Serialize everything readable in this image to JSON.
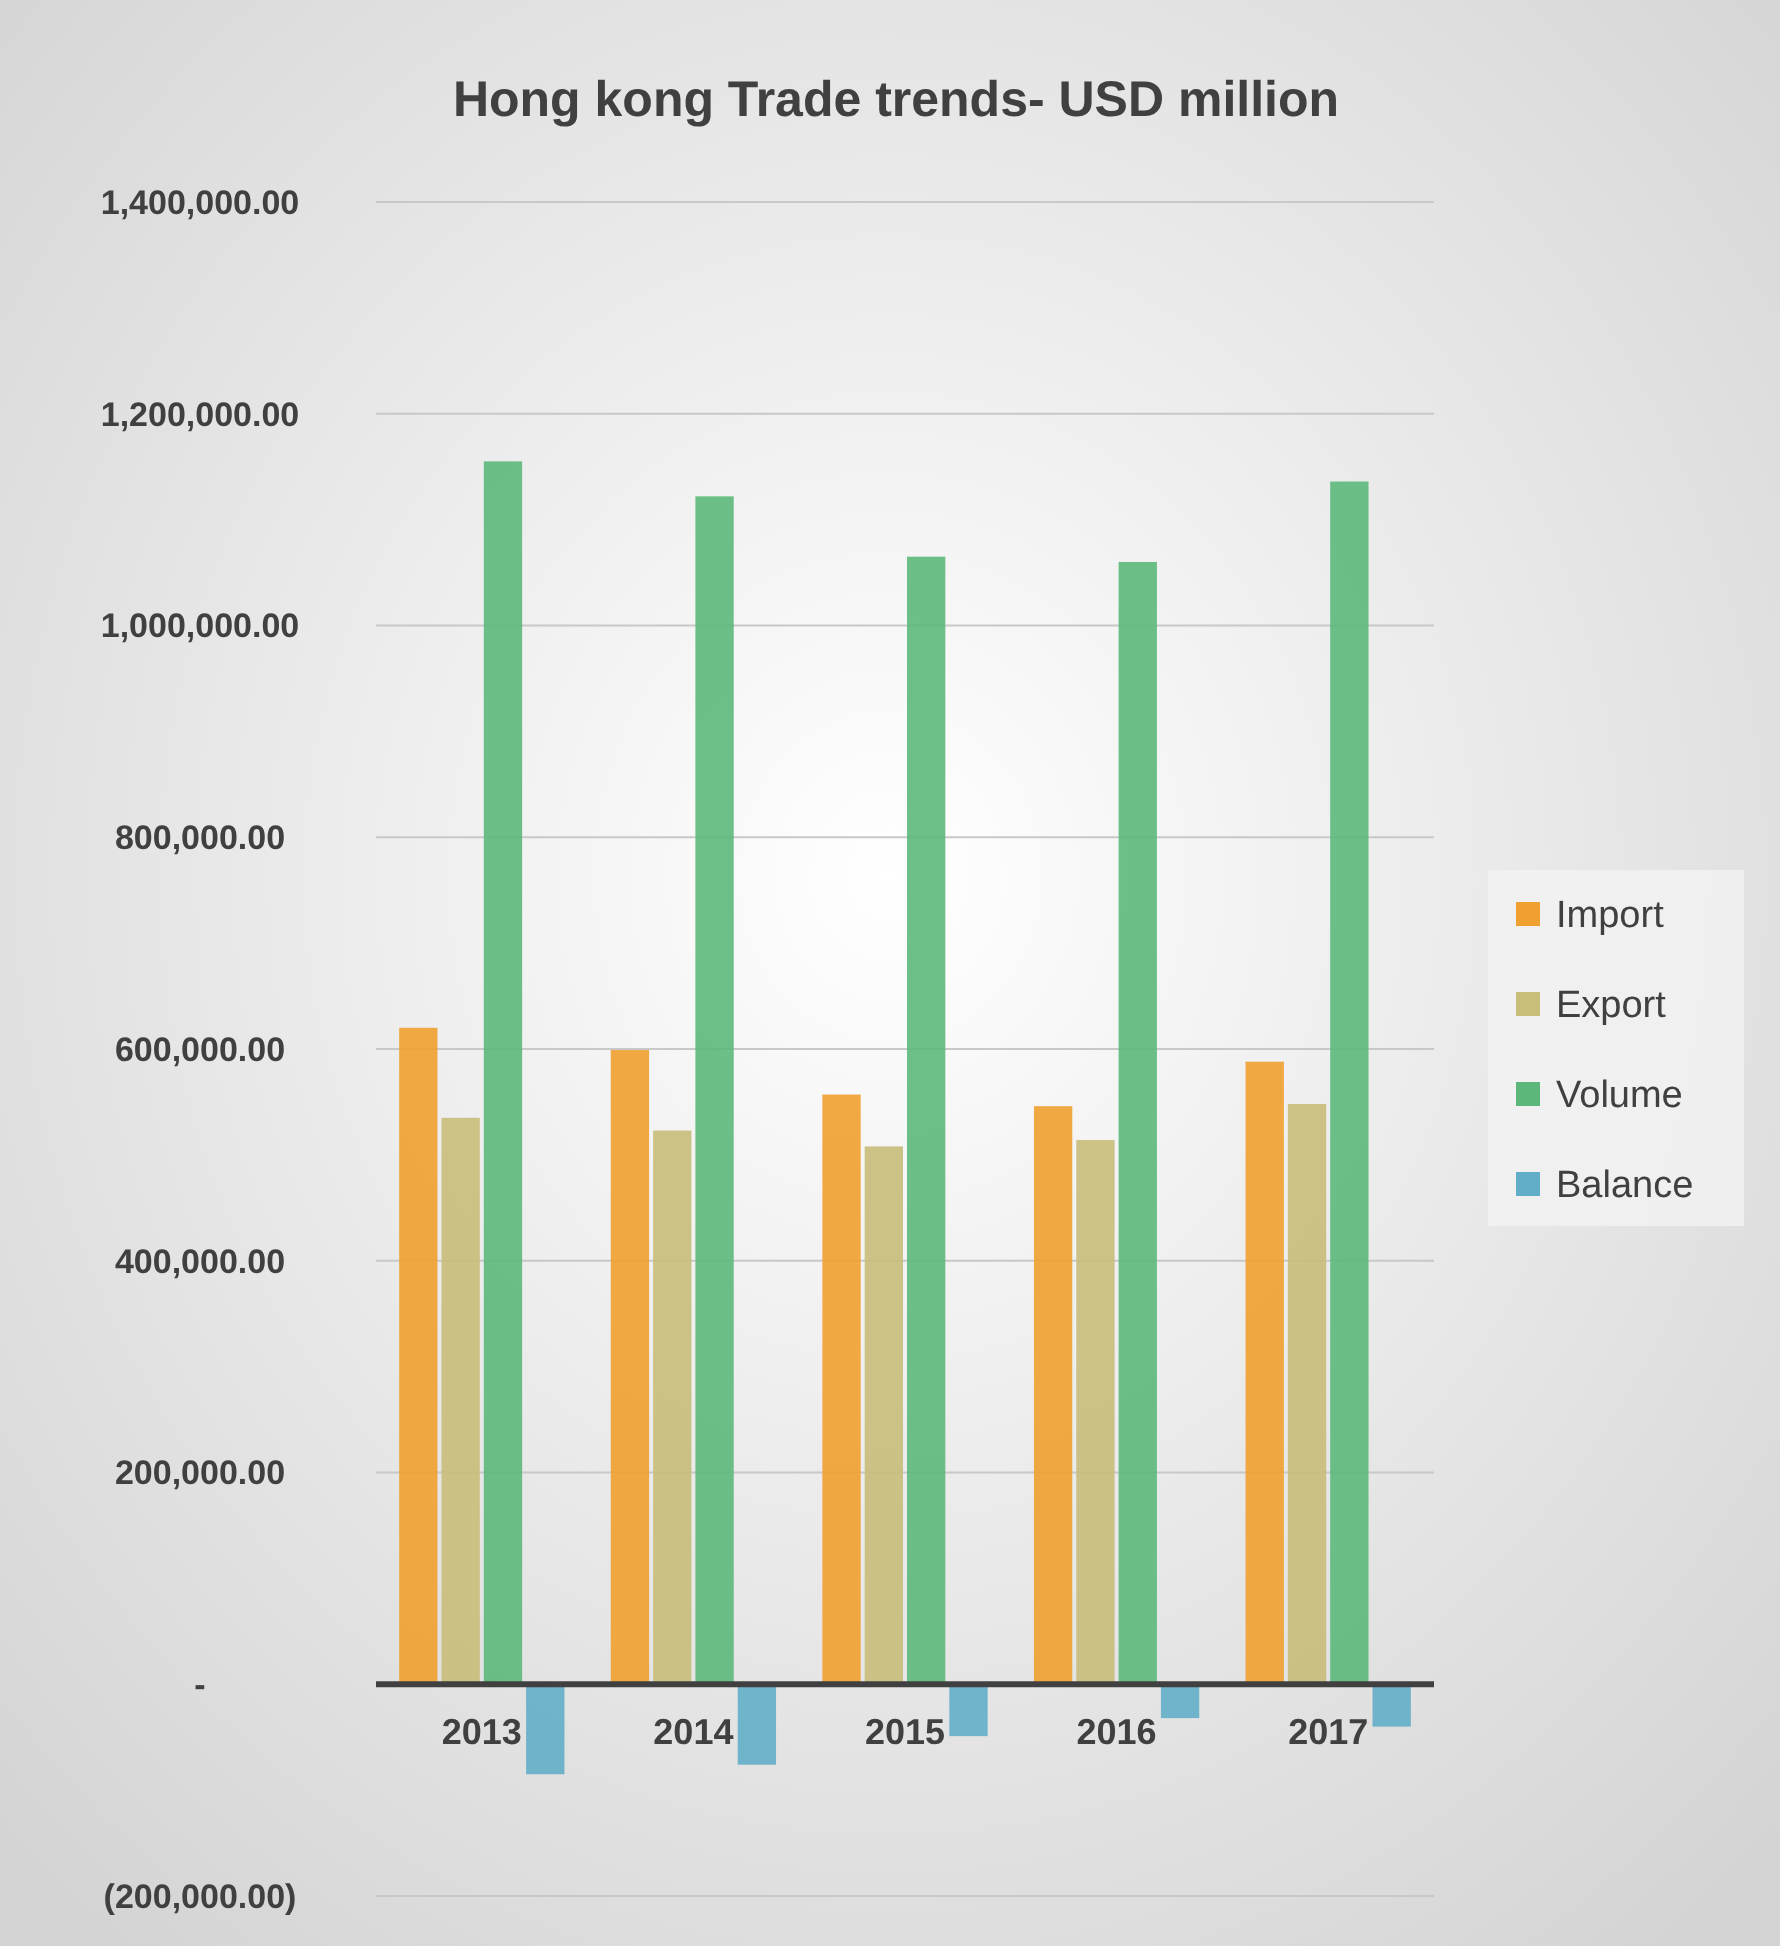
{
  "chart_data": {
    "type": "bar",
    "title": "Hong kong Trade trends- USD million",
    "categories": [
      "2013",
      "2014",
      "2015",
      "2016",
      "2017"
    ],
    "series": [
      {
        "name": "Import",
        "color": "#f0a030",
        "values": [
          620000,
          599000,
          557000,
          546000,
          588000
        ]
      },
      {
        "name": "Export",
        "color": "#c9bd7a",
        "values": [
          535000,
          523000,
          508000,
          514000,
          548000
        ]
      },
      {
        "name": "Volume",
        "color": "#5cb87a",
        "values": [
          1155000,
          1122000,
          1065000,
          1060000,
          1136000
        ]
      },
      {
        "name": "Balance",
        "color": "#62aec8",
        "values": [
          -85000,
          -76000,
          -49000,
          -32000,
          -40000
        ]
      }
    ],
    "ylim": [
      -200000,
      1400000
    ],
    "yticks": [
      {
        "value": -200000,
        "label": "(200,000.00)"
      },
      {
        "value": 0,
        "label": "-"
      },
      {
        "value": 200000,
        "label": "200,000.00"
      },
      {
        "value": 400000,
        "label": "400,000.00"
      },
      {
        "value": 600000,
        "label": "600,000.00"
      },
      {
        "value": 800000,
        "label": "800,000.00"
      },
      {
        "value": 1000000,
        "label": "1,000,000.00"
      },
      {
        "value": 1200000,
        "label": "1,200,000.00"
      },
      {
        "value": 1400000,
        "label": "1,400,000.00"
      }
    ],
    "grid": "y",
    "legend": "right"
  }
}
